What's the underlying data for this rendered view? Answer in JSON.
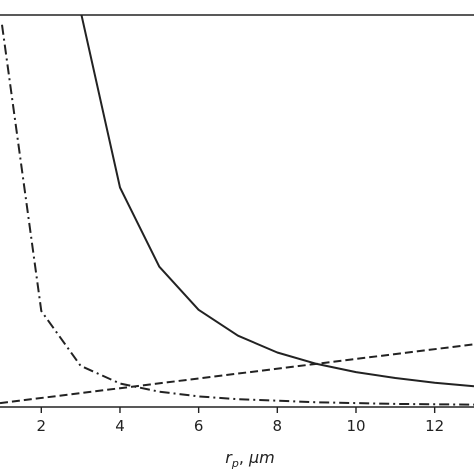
{
  "chart_data": {
    "type": "line",
    "title": "",
    "xlabel": "r_p, μm",
    "ylabel": "",
    "xlim": [
      0.95,
      13
    ],
    "ylim": [
      0,
      10
    ],
    "x_ticks": [
      2,
      4,
      6,
      8,
      10,
      12
    ],
    "x_tick_labels": [
      "2",
      "4",
      "6",
      "8",
      "10",
      "12"
    ],
    "grid": false,
    "legend": "none",
    "series": [
      {
        "style": "solid",
        "color": "#222222",
        "x": [
          3,
          4,
          5,
          6,
          7,
          8,
          9,
          10,
          11,
          12,
          13
        ],
        "y": [
          10.1,
          5.6,
          3.58,
          2.48,
          1.82,
          1.39,
          1.1,
          0.89,
          0.74,
          0.62,
          0.53
        ]
      },
      {
        "style": "dashed",
        "color": "#222222",
        "x": [
          0.95,
          13
        ],
        "y": [
          0.1,
          1.6
        ]
      },
      {
        "style": "dashdot",
        "color": "#222222",
        "x": [
          1,
          2,
          3,
          4,
          5,
          6,
          7,
          8,
          9,
          10,
          11,
          12,
          13
        ],
        "y": [
          9.75,
          2.45,
          1.05,
          0.6,
          0.39,
          0.27,
          0.2,
          0.16,
          0.12,
          0.1,
          0.08,
          0.07,
          0.06
        ]
      }
    ]
  }
}
